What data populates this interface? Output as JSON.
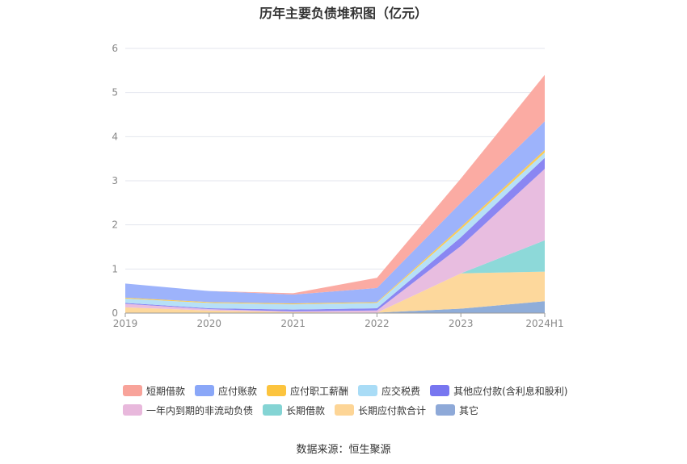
{
  "title": "历年主要负债堆积图（亿元）",
  "source": "数据来源：恒生聚源",
  "chart_data": {
    "type": "area",
    "stacked": true,
    "categories": [
      "2019",
      "2020",
      "2021",
      "2022",
      "2023",
      "2024H1"
    ],
    "ylim": [
      0,
      6
    ],
    "yticks": [
      "0",
      "1",
      "2",
      "3",
      "4",
      "5",
      "6"
    ],
    "grid": true,
    "legend_position": "bottom",
    "series": [
      {
        "name": "其它",
        "color": "#8fadd9",
        "values": [
          0.01,
          0.01,
          0.01,
          0.01,
          0.1,
          0.27
        ]
      },
      {
        "name": "长期应付款合计",
        "color": "#fdd89c",
        "values": [
          0.12,
          0.05,
          0.01,
          0.0,
          0.8,
          0.67
        ]
      },
      {
        "name": "长期借款",
        "color": "#8dd9d9",
        "values": [
          0.0,
          0.0,
          0.0,
          0.0,
          0.0,
          0.71
        ]
      },
      {
        "name": "一年内到期的非流动负债",
        "color": "#e8bde0",
        "values": [
          0.08,
          0.03,
          0.02,
          0.05,
          0.62,
          1.62
        ]
      },
      {
        "name": "其他应付款(含利息和股利)",
        "color": "#8a86f2",
        "values": [
          0.02,
          0.02,
          0.04,
          0.05,
          0.2,
          0.25
        ]
      },
      {
        "name": "应交税费",
        "color": "#b6e0f7",
        "values": [
          0.1,
          0.12,
          0.12,
          0.12,
          0.18,
          0.12
        ]
      },
      {
        "name": "应付职工薪酬",
        "color": "#fccb52",
        "values": [
          0.02,
          0.02,
          0.02,
          0.02,
          0.05,
          0.06
        ]
      },
      {
        "name": "应付账款",
        "color": "#9db3fb",
        "values": [
          0.32,
          0.25,
          0.2,
          0.32,
          0.55,
          0.65
        ]
      },
      {
        "name": "短期借款",
        "color": "#fbaba3",
        "values": [
          0.0,
          0.0,
          0.03,
          0.23,
          0.55,
          1.05
        ]
      }
    ]
  },
  "legend": {
    "rows": [
      [
        {
          "label": "短期借款",
          "color": "#f8a39a"
        },
        {
          "label": "应付账款",
          "color": "#8aa7f8"
        },
        {
          "label": "应付职工薪酬",
          "color": "#fcc43e"
        },
        {
          "label": "应交税费",
          "color": "#a9dcf6"
        },
        {
          "label": "其他应付款(含利息和股利)",
          "color": "#7776f0"
        }
      ],
      [
        {
          "label": "一年内到期的非流动负债",
          "color": "#e8b8dc"
        },
        {
          "label": "长期借款",
          "color": "#84d4d4"
        },
        {
          "label": "长期应付款合计",
          "color": "#fdd596"
        },
        {
          "label": "其它",
          "color": "#8ea9d8"
        }
      ]
    ]
  }
}
